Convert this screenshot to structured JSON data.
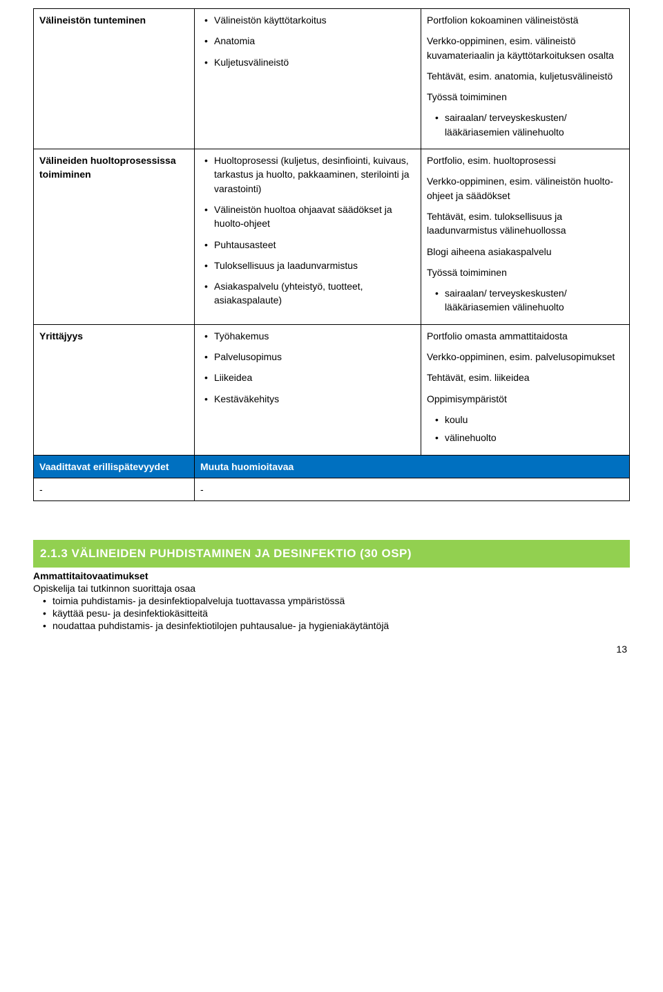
{
  "colors": {
    "blue_header_bg": "#0070c0",
    "blue_header_text": "#ffffff",
    "green_banner_bg": "#92d050",
    "green_banner_text": "#ffffff",
    "border": "#000000",
    "body_text": "#000000",
    "page_bg": "#ffffff"
  },
  "typography": {
    "body_font": "Arial",
    "body_size_pt": 11,
    "header_size_pt": 13,
    "line_height": 1.45
  },
  "table": {
    "rows": [
      {
        "col1_bold": "Välineistön tunteminen",
        "col2_bullets": [
          "Välineistön käyttötarkoitus",
          "Anatomia",
          "Kuljetusvälineistö"
        ],
        "col3_paras": [
          "Portfolion kokoaminen välineistöstä",
          "Verkko-oppiminen, esim. välineistö kuvamateriaalin ja käyttötarkoituksen osalta",
          "Tehtävät, esim. anatomia, kuljetusvälineistö",
          "Työssä toimiminen"
        ],
        "col3_dots": [
          "sairaalan/ terveyskeskusten/ lääkäriasemien välinehuolto"
        ]
      },
      {
        "col1_bold": "Välineiden huoltoprosessissa toimiminen",
        "col2_bullets": [
          "Huoltoprosessi (kuljetus, desinfiointi, kuivaus, tarkastus ja huolto, pakkaaminen, sterilointi ja varastointi)",
          "Välineistön huoltoa ohjaavat säädökset ja huolto-ohjeet",
          "Puhtausasteet",
          "Tuloksellisuus ja laadunvarmistus",
          "Asiakaspalvelu (yhteistyö, tuotteet, asiakaspalaute)"
        ],
        "col3_paras": [
          "Portfolio, esim. huoltoprosessi",
          "Verkko-oppiminen, esim. välineistön huolto-ohjeet ja säädökset",
          "Tehtävät, esim. tuloksellisuus ja laadunvarmistus välinehuollossa",
          "Blogi aiheena asiakaspalvelu",
          "Työssä toimiminen"
        ],
        "col3_dots": [
          "sairaalan/ terveyskeskusten/ lääkäriasemien välinehuolto"
        ]
      },
      {
        "col1_bold": "Yrittäjyys",
        "col2_bullets": [
          "Työhakemus",
          "Palvelusopimus",
          "Liikeidea",
          "Kestäväkehitys"
        ],
        "col3_paras": [
          "Portfolio omasta ammattitaidosta",
          "Verkko-oppiminen, esim. palvelusopimukset",
          "Tehtävät, esim. liikeidea",
          "Oppimisympäristöt"
        ],
        "col3_dots": [
          "koulu",
          "välinehuolto"
        ]
      }
    ],
    "blue_header": {
      "left": "Vaadittavat erillispätevyydet",
      "right": "Muuta huomioitavaa"
    },
    "dash_row": {
      "left": "-",
      "right": "-"
    }
  },
  "section": {
    "banner": "2.1.3 VÄLINEIDEN PUHDISTAMINEN JA DESINFEKTIO (30 OSP)",
    "req_title": "Ammattitaitovaatimukset",
    "intro": "Opiskelija tai tutkinnon suorittaja osaa",
    "bullets": [
      "toimia puhdistamis- ja desinfektiopalveluja tuottavassa ympäristössä",
      "käyttää pesu- ja desinfektiokäsitteitä",
      "noudattaa puhdistamis- ja desinfektiotilojen puhtausalue- ja hygieniakäytäntöjä"
    ]
  },
  "page_number": "13"
}
